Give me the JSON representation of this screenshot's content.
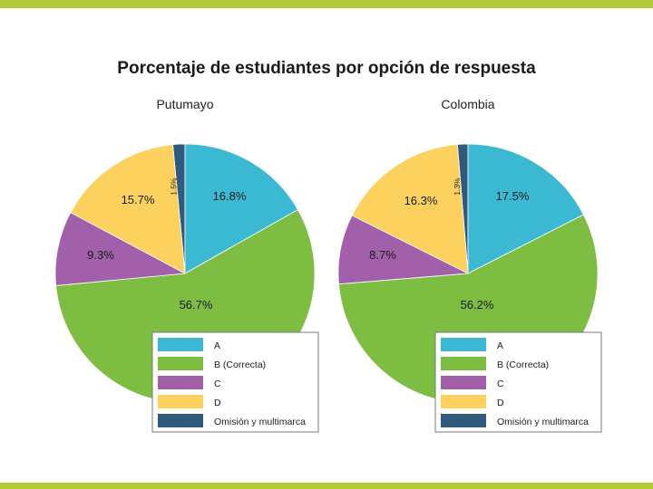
{
  "colors": {
    "brand_band": "#b3c935",
    "slice_a": "#3bb9d2",
    "slice_b": "#7cbd42",
    "slice_c": "#a160a9",
    "slice_d": "#fcd15d",
    "slice_omision": "#2f5a7e"
  },
  "chart_data": [
    {
      "type": "pie",
      "title": "Porcentaje de estudiantes por opción de respuesta",
      "subtitle": "Putumayo",
      "slices": [
        {
          "key": "omision",
          "label": "Omisión y multimarca",
          "value": 1.5,
          "display": "1.5%"
        },
        {
          "key": "a",
          "label": "A",
          "value": 16.8,
          "display": "16.8%"
        },
        {
          "key": "b",
          "label": "B (Correcta)",
          "value": 56.7,
          "display": "56.7%"
        },
        {
          "key": "c",
          "label": "C",
          "value": 9.3,
          "display": "9.3%"
        },
        {
          "key": "d",
          "label": "D",
          "value": 15.7,
          "display": "15.7%"
        }
      ],
      "legend": [
        "A",
        "B (Correcta)",
        "C",
        "D",
        "Omisión y multimarca"
      ],
      "legend_position": "bottom-right"
    },
    {
      "type": "pie",
      "title": "Porcentaje de estudiantes por opción de respuesta",
      "subtitle": "Colombia",
      "slices": [
        {
          "key": "omision",
          "label": "Omisión y multimarca",
          "value": 1.3,
          "display": "1.3%"
        },
        {
          "key": "a",
          "label": "A",
          "value": 17.5,
          "display": "17.5%"
        },
        {
          "key": "b",
          "label": "B (Correcta)",
          "value": 56.2,
          "display": "56.2%"
        },
        {
          "key": "c",
          "label": "C",
          "value": 8.7,
          "display": "8.7%"
        },
        {
          "key": "d",
          "label": "D",
          "value": 16.3,
          "display": "16.3%"
        }
      ],
      "legend": [
        "A",
        "B (Correcta)",
        "C",
        "D",
        "Omisión y multimarca"
      ],
      "legend_position": "bottom-right"
    }
  ]
}
